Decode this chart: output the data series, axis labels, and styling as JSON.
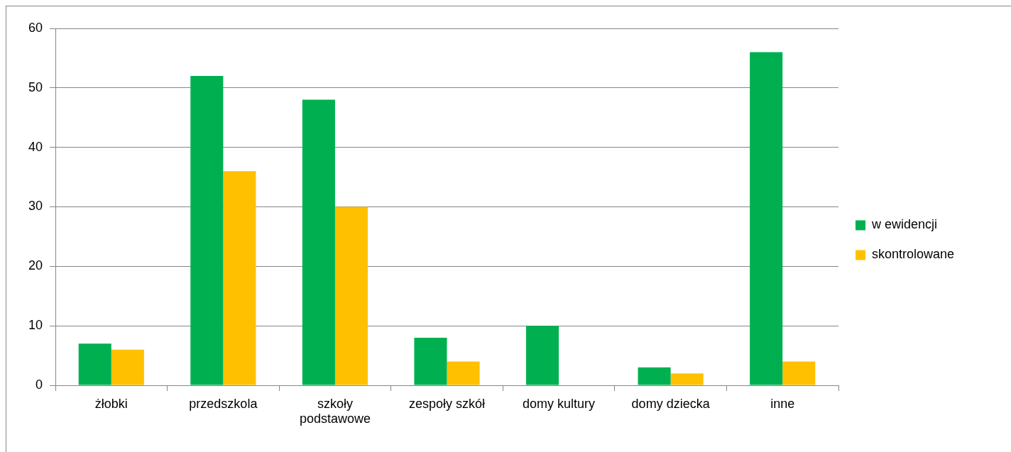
{
  "chart_data": {
    "type": "bar",
    "categories": [
      "żłobki",
      "przedszkola",
      "szkoły podstawowe",
      "zespoły szkół",
      "domy kultury",
      "domy dziecka",
      "inne"
    ],
    "series": [
      {
        "name": "w ewidencji",
        "color": "#00b050",
        "values": [
          7,
          52,
          48,
          8,
          10,
          3,
          56
        ]
      },
      {
        "name": "skontrolowane",
        "color": "#ffc000",
        "values": [
          6,
          36,
          30,
          4,
          0,
          2,
          4
        ]
      }
    ],
    "ylim": [
      0,
      60
    ],
    "yticks": [
      0,
      10,
      20,
      30,
      40,
      50,
      60
    ],
    "grid": "y",
    "legend": "right"
  }
}
